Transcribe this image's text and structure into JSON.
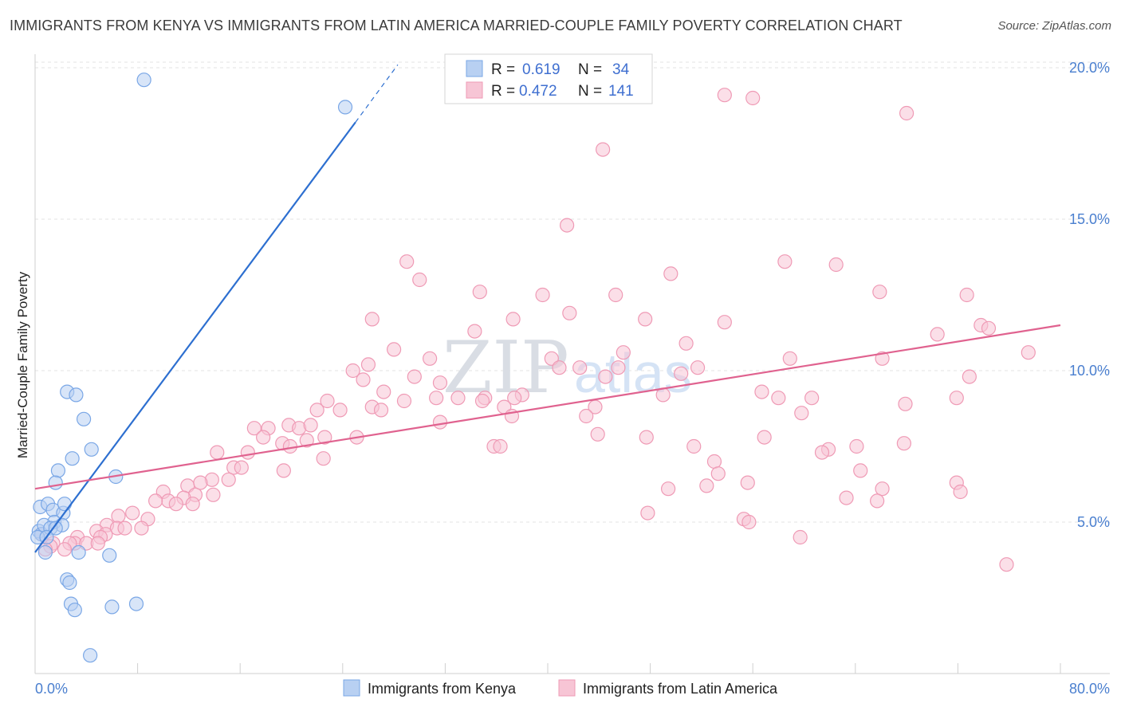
{
  "header": {
    "title": "IMMIGRANTS FROM KENYA VS IMMIGRANTS FROM LATIN AMERICA MARRIED-COUPLE FAMILY POVERTY CORRELATION CHART",
    "source": "Source: ZipAtlas.com"
  },
  "watermark": {
    "part1": "ZIP",
    "part2": "atlas"
  },
  "chart_data": {
    "type": "scatter",
    "title": "IMMIGRANTS FROM KENYA VS IMMIGRANTS FROM LATIN AMERICA MARRIED-COUPLE FAMILY POVERTY CORRELATION CHART",
    "xlabel": "",
    "ylabel": "Married-Couple Family Poverty",
    "xlim": [
      0,
      80
    ],
    "ylim": [
      0,
      20.5
    ],
    "x_tick_labels": {
      "left": "0.0%",
      "right": "80.0%"
    },
    "y_ticks": [
      {
        "value": 5,
        "label": "5.0%"
      },
      {
        "value": 10,
        "label": "10.0%"
      },
      {
        "value": 15,
        "label": "15.0%"
      },
      {
        "value": 20,
        "label": "20.0%"
      }
    ],
    "legend": {
      "placement": "top-center",
      "entries": [
        {
          "r_label": "R =",
          "r": "0.619",
          "n_label": "N =",
          "n": "34"
        },
        {
          "r_label": "R =",
          "r": "0.472",
          "n_label": "N =",
          "n": "141"
        }
      ]
    },
    "series": [
      {
        "name": "Immigrants from Kenya",
        "color": "#7aa7e6",
        "fill": "#b8d0f2",
        "line_color": "#2d6fd0",
        "trend": {
          "x0": 0,
          "y0": 4.0,
          "x1": 25,
          "y1": 18.2,
          "dash_to_x": 28.3,
          "dash_to_y": 20.1
        },
        "points": [
          [
            8.5,
            19.6
          ],
          [
            24.2,
            18.7
          ],
          [
            2.5,
            9.3
          ],
          [
            3.2,
            9.2
          ],
          [
            3.8,
            8.4
          ],
          [
            4.4,
            7.4
          ],
          [
            2.9,
            7.1
          ],
          [
            1.8,
            6.7
          ],
          [
            6.3,
            6.5
          ],
          [
            1.6,
            6.3
          ],
          [
            0.4,
            5.5
          ],
          [
            1.0,
            5.6
          ],
          [
            1.4,
            5.4
          ],
          [
            2.2,
            5.3
          ],
          [
            2.3,
            5.6
          ],
          [
            1.5,
            5.0
          ],
          [
            2.1,
            4.9
          ],
          [
            0.3,
            4.7
          ],
          [
            0.5,
            4.6
          ],
          [
            0.7,
            4.9
          ],
          [
            1.2,
            4.8
          ],
          [
            1.6,
            4.8
          ],
          [
            0.2,
            4.5
          ],
          [
            0.9,
            4.5
          ],
          [
            0.8,
            4.0
          ],
          [
            3.4,
            4.0
          ],
          [
            5.8,
            3.9
          ],
          [
            2.5,
            3.1
          ],
          [
            2.7,
            3.0
          ],
          [
            2.8,
            2.3
          ],
          [
            3.1,
            2.1
          ],
          [
            6.0,
            2.2
          ],
          [
            7.9,
            2.3
          ],
          [
            4.3,
            0.6
          ]
        ]
      },
      {
        "name": "Immigrants from Latin America",
        "color": "#ef9ab5",
        "fill": "#f7c5d5",
        "line_color": "#e0628f",
        "trend": {
          "x0": 0,
          "y0": 6.1,
          "x1": 80,
          "y1": 11.5
        },
        "points": [
          [
            56.0,
            19.0
          ],
          [
            53.8,
            19.1
          ],
          [
            68.0,
            18.5
          ],
          [
            44.3,
            17.3
          ],
          [
            41.5,
            14.8
          ],
          [
            29.0,
            13.6
          ],
          [
            30.0,
            13.0
          ],
          [
            49.6,
            13.2
          ],
          [
            58.5,
            13.6
          ],
          [
            62.5,
            13.5
          ],
          [
            34.7,
            12.6
          ],
          [
            39.6,
            12.5
          ],
          [
            45.3,
            12.5
          ],
          [
            65.9,
            12.6
          ],
          [
            72.7,
            12.5
          ],
          [
            26.3,
            11.7
          ],
          [
            41.7,
            11.9
          ],
          [
            37.3,
            11.7
          ],
          [
            47.6,
            11.7
          ],
          [
            53.8,
            11.6
          ],
          [
            34.3,
            11.3
          ],
          [
            70.4,
            11.2
          ],
          [
            73.8,
            11.5
          ],
          [
            74.4,
            11.4
          ],
          [
            50.8,
            10.9
          ],
          [
            28.0,
            10.7
          ],
          [
            45.9,
            10.6
          ],
          [
            77.5,
            10.6
          ],
          [
            30.8,
            10.4
          ],
          [
            26.0,
            10.2
          ],
          [
            40.3,
            10.4
          ],
          [
            58.9,
            10.4
          ],
          [
            66.1,
            10.4
          ],
          [
            24.8,
            10.0
          ],
          [
            40.9,
            10.1
          ],
          [
            42.5,
            10.1
          ],
          [
            45.5,
            10.1
          ],
          [
            51.7,
            10.1
          ],
          [
            25.6,
            9.7
          ],
          [
            29.6,
            9.8
          ],
          [
            31.6,
            9.6
          ],
          [
            44.5,
            9.8
          ],
          [
            50.4,
            9.9
          ],
          [
            72.9,
            9.8
          ],
          [
            27.2,
            9.3
          ],
          [
            33.0,
            9.1
          ],
          [
            35.1,
            9.1
          ],
          [
            28.8,
            9.0
          ],
          [
            31.3,
            9.1
          ],
          [
            34.9,
            9.0
          ],
          [
            38.0,
            9.2
          ],
          [
            49.0,
            9.2
          ],
          [
            56.7,
            9.3
          ],
          [
            58.0,
            9.1
          ],
          [
            60.6,
            9.1
          ],
          [
            71.9,
            9.1
          ],
          [
            22.8,
            9.0
          ],
          [
            26.3,
            8.8
          ],
          [
            27.0,
            8.7
          ],
          [
            37.4,
            9.1
          ],
          [
            36.6,
            8.8
          ],
          [
            23.8,
            8.7
          ],
          [
            22.0,
            8.7
          ],
          [
            43.7,
            8.8
          ],
          [
            59.8,
            8.6
          ],
          [
            67.9,
            8.9
          ],
          [
            37.2,
            8.5
          ],
          [
            43.0,
            8.5
          ],
          [
            31.6,
            8.3
          ],
          [
            17.1,
            8.1
          ],
          [
            19.8,
            8.2
          ],
          [
            20.6,
            8.1
          ],
          [
            21.5,
            8.2
          ],
          [
            18.2,
            8.1
          ],
          [
            17.8,
            7.8
          ],
          [
            22.6,
            7.8
          ],
          [
            21.2,
            7.7
          ],
          [
            25.1,
            7.8
          ],
          [
            43.9,
            7.9
          ],
          [
            56.9,
            7.8
          ],
          [
            47.7,
            7.8
          ],
          [
            19.3,
            7.6
          ],
          [
            19.9,
            7.5
          ],
          [
            35.8,
            7.5
          ],
          [
            36.3,
            7.5
          ],
          [
            51.4,
            7.5
          ],
          [
            61.9,
            7.4
          ],
          [
            64.1,
            7.5
          ],
          [
            67.8,
            7.6
          ],
          [
            14.2,
            7.3
          ],
          [
            16.6,
            7.3
          ],
          [
            22.5,
            7.1
          ],
          [
            53.0,
            7.0
          ],
          [
            61.4,
            7.3
          ],
          [
            15.5,
            6.8
          ],
          [
            16.1,
            6.8
          ],
          [
            19.4,
            6.7
          ],
          [
            53.3,
            6.6
          ],
          [
            64.4,
            6.7
          ],
          [
            13.8,
            6.4
          ],
          [
            15.1,
            6.4
          ],
          [
            11.9,
            6.2
          ],
          [
            12.9,
            6.3
          ],
          [
            49.4,
            6.1
          ],
          [
            52.4,
            6.2
          ],
          [
            55.6,
            6.3
          ],
          [
            66.1,
            6.1
          ],
          [
            71.9,
            6.3
          ],
          [
            72.2,
            6.0
          ],
          [
            10.0,
            6.0
          ],
          [
            12.5,
            5.9
          ],
          [
            13.9,
            5.9
          ],
          [
            11.6,
            5.8
          ],
          [
            10.4,
            5.7
          ],
          [
            11.0,
            5.6
          ],
          [
            9.4,
            5.7
          ],
          [
            12.3,
            5.6
          ],
          [
            65.7,
            5.7
          ],
          [
            63.3,
            5.8
          ],
          [
            47.8,
            5.3
          ],
          [
            6.5,
            5.2
          ],
          [
            7.6,
            5.3
          ],
          [
            8.8,
            5.1
          ],
          [
            55.3,
            5.1
          ],
          [
            55.7,
            5.0
          ],
          [
            5.6,
            4.9
          ],
          [
            6.4,
            4.8
          ],
          [
            7.0,
            4.8
          ],
          [
            8.3,
            4.8
          ],
          [
            4.8,
            4.7
          ],
          [
            5.5,
            4.6
          ],
          [
            5.1,
            4.5
          ],
          [
            3.3,
            4.5
          ],
          [
            3.1,
            4.3
          ],
          [
            4.0,
            4.3
          ],
          [
            4.9,
            4.3
          ],
          [
            2.7,
            4.3
          ],
          [
            1.4,
            4.3
          ],
          [
            2.3,
            4.1
          ],
          [
            1.2,
            4.2
          ],
          [
            0.8,
            4.1
          ],
          [
            0.5,
            4.6
          ],
          [
            59.7,
            4.5
          ],
          [
            75.8,
            3.6
          ]
        ]
      }
    ]
  },
  "bottom_legend": [
    {
      "label": "Immigrants from Kenya"
    },
    {
      "label": "Immigrants from Latin America"
    }
  ]
}
